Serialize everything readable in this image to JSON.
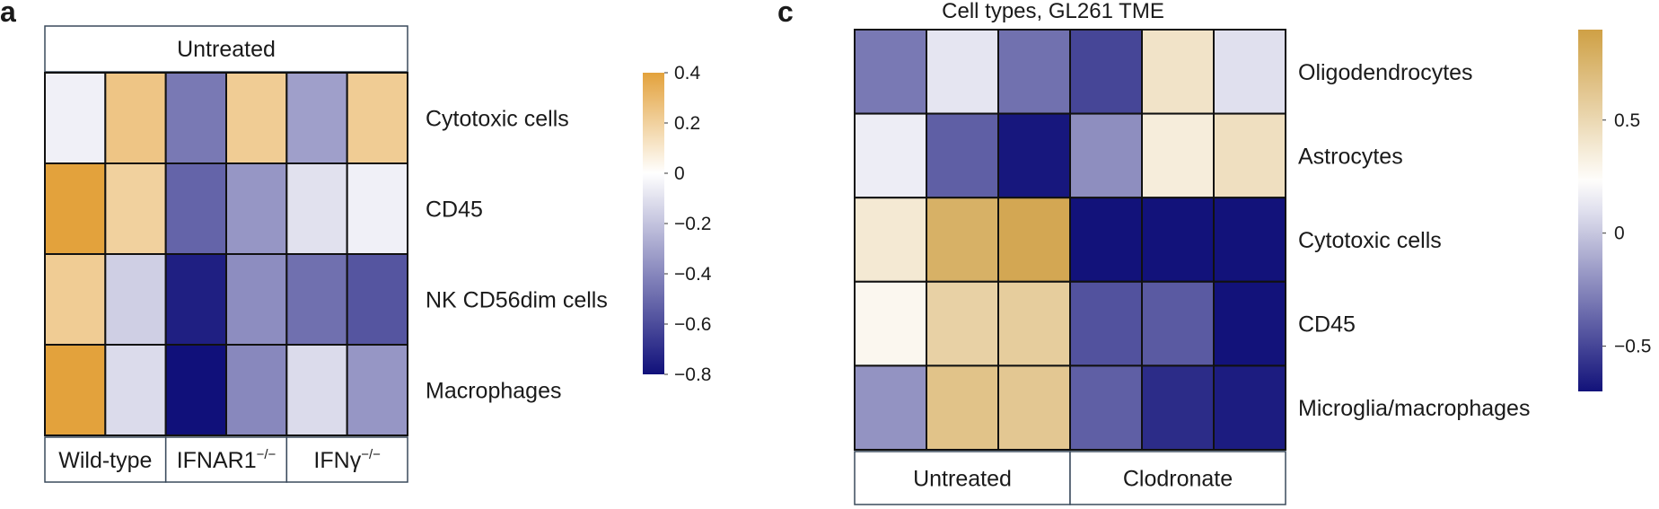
{
  "panels": {
    "a": {
      "letter": "a"
    },
    "c": {
      "letter": "c",
      "title": "Cell types, GL261 TME"
    }
  },
  "chart_data": [
    {
      "type": "heatmap",
      "panel": "a",
      "header": "Untreated",
      "rows": [
        "Cytotoxic cells",
        "CD45",
        "NK CD56dim cells",
        "Macrophages"
      ],
      "groups": [
        {
          "label": "Wild-type",
          "sup": ""
        },
        {
          "label": "IFNAR1",
          "sup": "−/−"
        },
        {
          "label": "IFNγ",
          "sup": "−/−"
        }
      ],
      "values": [
        [
          -0.05,
          0.25,
          -0.45,
          0.22,
          -0.32,
          0.22
        ],
        [
          0.4,
          0.2,
          -0.52,
          -0.35,
          -0.1,
          -0.05
        ],
        [
          0.22,
          -0.16,
          -0.75,
          -0.38,
          -0.48,
          -0.57
        ],
        [
          0.4,
          -0.12,
          -0.8,
          -0.4,
          -0.12,
          -0.35
        ]
      ],
      "colorbar": {
        "min": -0.8,
        "max": 0.4,
        "ticks": [
          0.4,
          0.2,
          0,
          -0.2,
          -0.4,
          -0.6,
          -0.8
        ],
        "tick_labels": [
          "0.4",
          "0.2",
          "0",
          "−0.2",
          "−0.4",
          "−0.6",
          "−0.8"
        ],
        "low_color": "#10107a",
        "mid_color": "#ffffff",
        "high_color": "#e3a23c"
      }
    },
    {
      "type": "heatmap",
      "panel": "c",
      "title": "Cell types, GL261 TME",
      "rows": [
        "Oligodendrocytes",
        "Astrocytes",
        "Cytotoxic cells",
        "CD45",
        "Microglia/macrophages"
      ],
      "groups": [
        {
          "label": "Untreated",
          "sup": ""
        },
        {
          "label": "Clodronate",
          "sup": ""
        }
      ],
      "values": [
        [
          -0.3,
          0.12,
          -0.33,
          -0.5,
          0.42,
          0.1
        ],
        [
          0.15,
          -0.4,
          -0.68,
          -0.22,
          0.35,
          0.45
        ],
        [
          0.38,
          0.78,
          0.85,
          -0.7,
          -0.88,
          -0.88
        ],
        [
          0.28,
          0.55,
          0.58,
          -0.45,
          -0.42,
          -0.73
        ],
        [
          -0.2,
          0.65,
          0.62,
          -0.4,
          -0.6,
          -0.66
        ]
      ],
      "colorbar": {
        "min": -0.7,
        "max": 0.9,
        "ticks": [
          0.5,
          0,
          -0.5
        ],
        "tick_labels": [
          "0.5",
          "0",
          "−0.5"
        ],
        "low_color": "#12127a",
        "mid_color": "#ffffff",
        "high_color": "#cfa045",
        "mid_value": 0.22
      }
    }
  ]
}
